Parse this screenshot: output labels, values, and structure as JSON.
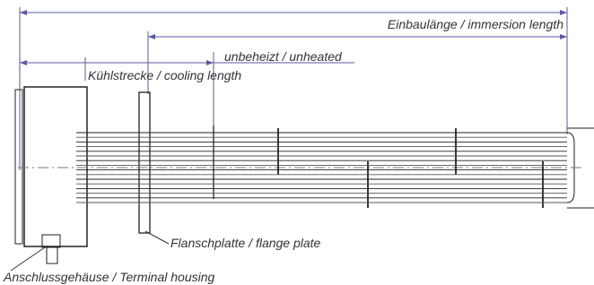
{
  "dimensions": [
    {
      "label": "Einbaulänge / immersion length"
    },
    {
      "label": "unbeheizt / unheated"
    },
    {
      "label": "Kühlstrecke / cooling length"
    }
  ],
  "callouts": [
    {
      "label": "Flanschplatte / flange plate"
    },
    {
      "label": "Anschlussgehäuse / Terminal housing"
    }
  ]
}
